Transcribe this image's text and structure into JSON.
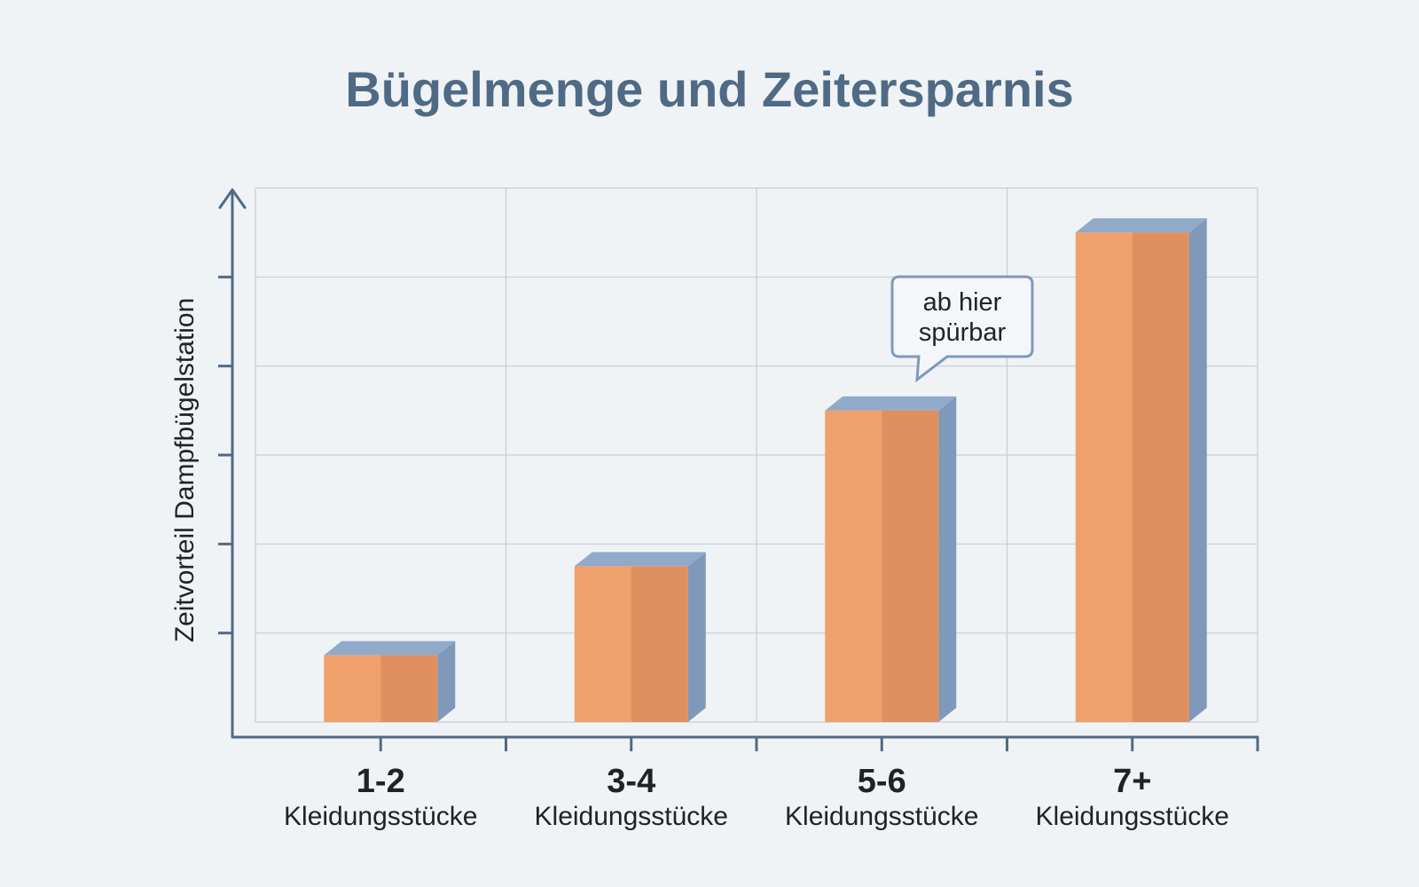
{
  "chart_data": {
    "type": "bar",
    "title": "Bügelmenge und Zeitersparnis",
    "ylabel": "Zeitvorteil Dampfbügelstation",
    "xlabel": "",
    "categories": [
      {
        "main": "1-2",
        "sub": "Kleidungsstücke"
      },
      {
        "main": "3-4",
        "sub": "Kleidungsstücke"
      },
      {
        "main": "5-6",
        "sub": "Kleidungsstücke"
      },
      {
        "main": "7+",
        "sub": "Kleidungsstücke"
      }
    ],
    "values": [
      0.75,
      1.75,
      3.5,
      5.5
    ],
    "ylim": [
      0,
      6
    ],
    "grid": true,
    "y_tick_labels_shown": false,
    "annotation": {
      "lines": [
        "ab hier",
        "spürbar"
      ],
      "category_index": 2
    },
    "colors": {
      "bar_front": "#f0a06b",
      "bar_shade": "#e08f5f",
      "bar_top": "#92aac9",
      "bar_side": "#7f99ba",
      "axis": "#4f6a85",
      "grid": "#c4cdd6",
      "title": "#4f6a85",
      "background": "#eff3f5"
    }
  }
}
